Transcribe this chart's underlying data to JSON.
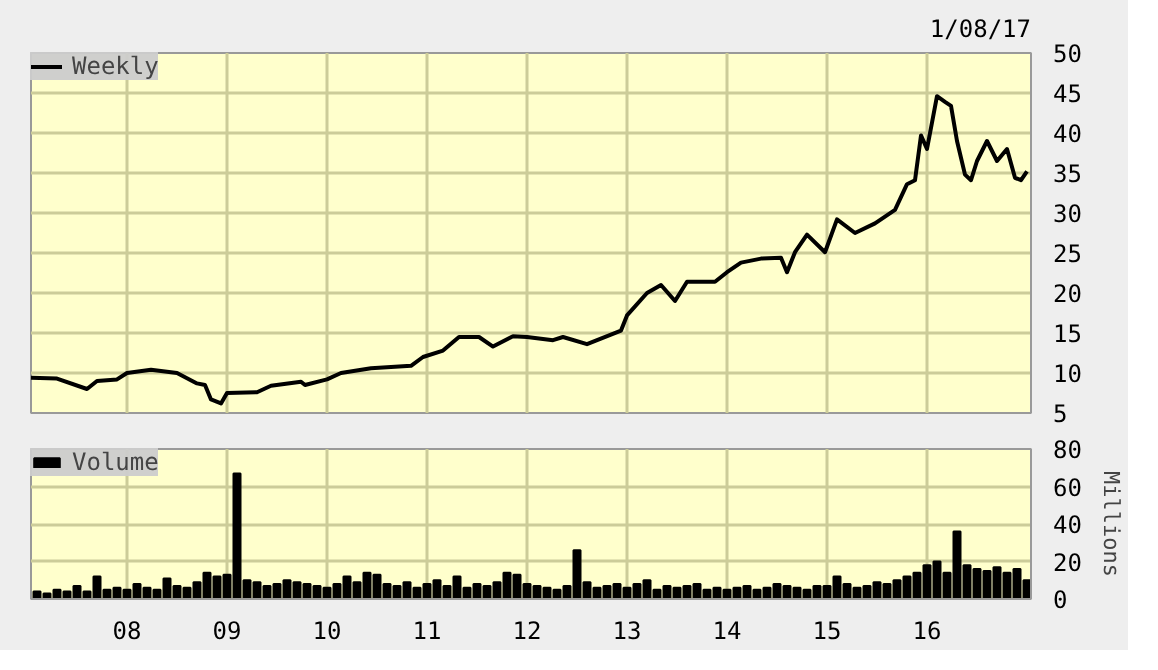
{
  "chart_data": [
    {
      "type": "line",
      "x": [
        2007.04,
        2007.3,
        2007.6,
        2007.7,
        2007.9,
        2008.0,
        2008.24,
        2008.5,
        2008.5,
        2008.7,
        2008.78,
        2008.84,
        2008.94,
        2009.0,
        2009.3,
        2009.44,
        2009.74,
        2009.78,
        2010.0,
        2010.14,
        2010.44,
        2010.84,
        2010.96,
        2011.16,
        2011.32,
        2011.52,
        2011.66,
        2011.86,
        2012.0,
        2012.26,
        2012.36,
        2012.6,
        2012.94,
        2013.0,
        2013.2,
        2013.34,
        2013.48,
        2013.6,
        2013.88,
        2014.0,
        2014.14,
        2014.34,
        2014.54,
        2014.6,
        2014.68,
        2014.8,
        2014.98,
        2015.1,
        2015.28,
        2015.48,
        2015.68,
        2015.8,
        2015.88,
        2015.94,
        2016.0,
        2016.1,
        2016.18,
        2016.24,
        2016.3,
        2016.38,
        2016.44,
        2016.5,
        2016.6,
        2016.7,
        2016.8,
        2016.88,
        2016.94,
        2017.0
      ],
      "series": [
        {
          "name": "Weekly",
          "color": "#000000",
          "values": [
            9.4,
            9.3,
            8.0,
            9.0,
            9.2,
            10.0,
            10.4,
            10.0,
            10.0,
            8.7,
            8.5,
            6.7,
            6.2,
            7.5,
            7.6,
            8.4,
            8.9,
            8.5,
            9.2,
            10.0,
            10.6,
            10.9,
            12.0,
            12.8,
            14.5,
            14.5,
            13.3,
            14.6,
            14.5,
            14.1,
            14.5,
            13.6,
            15.3,
            17.2,
            20.0,
            21.0,
            19.0,
            21.4,
            21.4,
            22.6,
            23.8,
            24.3,
            24.4,
            22.6,
            25.1,
            27.3,
            25.1,
            29.2,
            27.5,
            28.7,
            30.4,
            33.6,
            34.1,
            39.7,
            38.0,
            44.6,
            43.9,
            43.4,
            39.0,
            34.8,
            34.1,
            36.5,
            39.0,
            36.5,
            38.0,
            34.4,
            34.1,
            35.2
          ]
        }
      ],
      "xlim": [
        2007.04,
        2017.04
      ],
      "xticks": [
        2008,
        2009,
        2010,
        2011,
        2012,
        2013,
        2014,
        2015,
        2016
      ],
      "ylim": [
        5,
        50
      ],
      "yticks": [
        5,
        10,
        15,
        20,
        25,
        30,
        35,
        40,
        45,
        50
      ],
      "tick_labels": "y",
      "grid": true,
      "legend": "top left",
      "annotations": [
        "1/08/17"
      ]
    },
    {
      "type": "bar",
      "x": [
        2007.1,
        2007.2,
        2007.3,
        2007.4,
        2007.5,
        2007.6,
        2007.7,
        2007.8,
        2007.9,
        2008.0,
        2008.1,
        2008.2,
        2008.3,
        2008.4,
        2008.5,
        2008.6,
        2008.7,
        2008.8,
        2008.9,
        2009.0,
        2009.1,
        2009.2,
        2009.3,
        2009.4,
        2009.5,
        2009.6,
        2009.7,
        2009.8,
        2009.9,
        2010.0,
        2010.1,
        2010.2,
        2010.3,
        2010.4,
        2010.5,
        2010.6,
        2010.7,
        2010.8,
        2010.9,
        2011.0,
        2011.1,
        2011.2,
        2011.3,
        2011.4,
        2011.5,
        2011.6,
        2011.7,
        2011.8,
        2011.9,
        2012.0,
        2012.1,
        2012.2,
        2012.3,
        2012.4,
        2012.5,
        2012.6,
        2012.7,
        2012.8,
        2012.9,
        2013.0,
        2013.1,
        2013.2,
        2013.3,
        2013.4,
        2013.5,
        2013.6,
        2013.7,
        2013.8,
        2013.9,
        2014.0,
        2014.1,
        2014.2,
        2014.3,
        2014.4,
        2014.5,
        2014.6,
        2014.7,
        2014.8,
        2014.9,
        2015.0,
        2015.1,
        2015.2,
        2015.3,
        2015.4,
        2015.5,
        2015.6,
        2015.7,
        2015.8,
        2015.9,
        2016.0,
        2016.1,
        2016.2,
        2016.3,
        2016.4,
        2016.5,
        2016.6,
        2016.7,
        2016.8,
        2016.9,
        2017.0
      ],
      "series": [
        {
          "name": "Volume",
          "color": "#000000",
          "values": [
            4,
            3,
            5,
            4,
            7,
            4,
            12,
            5,
            6,
            5,
            8,
            6,
            5,
            11,
            7,
            6,
            9,
            14,
            12,
            13,
            67,
            10,
            9,
            7,
            8,
            10,
            9,
            8,
            7,
            6,
            8,
            12,
            9,
            14,
            13,
            8,
            7,
            9,
            6,
            8,
            10,
            7,
            12,
            6,
            8,
            7,
            9,
            14,
            13,
            8,
            7,
            6,
            5,
            7,
            26,
            9,
            6,
            7,
            8,
            6,
            8,
            10,
            5,
            7,
            6,
            7,
            8,
            5,
            6,
            5,
            6,
            7,
            5,
            6,
            8,
            7,
            6,
            5,
            7,
            7,
            12,
            8,
            6,
            7,
            9,
            8,
            10,
            12,
            14,
            18,
            20,
            14,
            36,
            18,
            16,
            15,
            17,
            14,
            16,
            10
          ]
        }
      ],
      "xlim": [
        2007.04,
        2017.04
      ],
      "xticks": [
        {
          "value": 2008,
          "label": "08"
        },
        {
          "value": 2009,
          "label": "09"
        },
        {
          "value": 2010,
          "label": "10"
        },
        {
          "value": 2011,
          "label": "11"
        },
        {
          "value": 2012,
          "label": "12"
        },
        {
          "value": 2013,
          "label": "13"
        },
        {
          "value": 2014,
          "label": "14"
        },
        {
          "value": 2015,
          "label": "15"
        },
        {
          "value": 2016,
          "label": "16"
        }
      ],
      "ylim": [
        0,
        80
      ],
      "yticks": [
        0,
        20,
        40,
        60,
        80
      ],
      "ylabel": "Millions",
      "grid": true,
      "legend": "top left"
    }
  ]
}
